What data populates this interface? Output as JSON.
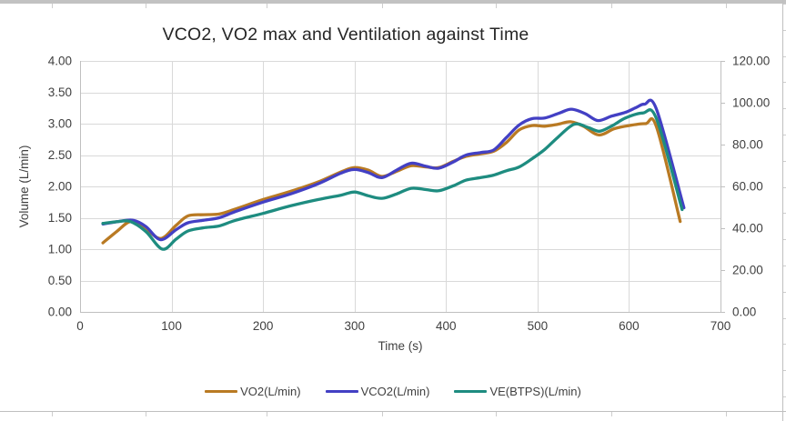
{
  "chart_data": {
    "type": "line",
    "title": "VCO2, VO2 max and Ventilation against Time",
    "xlabel": "Time (s)",
    "ylabel_left": "Volume (L/min)",
    "x_axis": {
      "min": 0,
      "max": 700,
      "tick_step": 100,
      "tick_labels": [
        "0",
        "100",
        "200",
        "300",
        "400",
        "500",
        "600",
        "700"
      ]
    },
    "y_axis_left": {
      "min": 0,
      "max": 4,
      "tick_step": 0.5,
      "tick_labels": [
        "0.00",
        "0.50",
        "1.00",
        "1.50",
        "2.00",
        "2.50",
        "3.00",
        "3.50",
        "4.00"
      ]
    },
    "y_axis_right": {
      "min": 0,
      "max": 120,
      "tick_step": 20,
      "tick_labels": [
        "0.00",
        "20.00",
        "40.00",
        "60.00",
        "80.00",
        "100.00",
        "120.00"
      ]
    },
    "grid": true,
    "legend_position": "bottom",
    "colors": {
      "grid": "#d9d9d9",
      "axis": "#bfbfbf",
      "tick_text": "#404040",
      "title_text": "#262626"
    },
    "series": [
      {
        "name": "VO2(L/min)",
        "color": "#b97a23",
        "axis": "left",
        "points": [
          [
            25,
            1.1
          ],
          [
            40,
            1.28
          ],
          [
            55,
            1.44
          ],
          [
            70,
            1.35
          ],
          [
            88,
            1.17
          ],
          [
            105,
            1.38
          ],
          [
            118,
            1.53
          ],
          [
            135,
            1.55
          ],
          [
            152,
            1.56
          ],
          [
            170,
            1.64
          ],
          [
            200,
            1.79
          ],
          [
            230,
            1.92
          ],
          [
            260,
            2.07
          ],
          [
            285,
            2.23
          ],
          [
            300,
            2.3
          ],
          [
            315,
            2.26
          ],
          [
            330,
            2.16
          ],
          [
            346,
            2.24
          ],
          [
            362,
            2.33
          ],
          [
            378,
            2.31
          ],
          [
            392,
            2.3
          ],
          [
            408,
            2.4
          ],
          [
            422,
            2.48
          ],
          [
            438,
            2.52
          ],
          [
            452,
            2.56
          ],
          [
            466,
            2.7
          ],
          [
            480,
            2.9
          ],
          [
            494,
            2.97
          ],
          [
            508,
            2.96
          ],
          [
            522,
            2.99
          ],
          [
            536,
            3.03
          ],
          [
            550,
            2.96
          ],
          [
            567,
            2.82
          ],
          [
            584,
            2.92
          ],
          [
            600,
            2.97
          ],
          [
            618,
            3.0
          ],
          [
            630,
            2.95
          ],
          [
            656,
            1.44
          ]
        ]
      },
      {
        "name": "VCO2(L/min)",
        "color": "#4340c4",
        "axis": "left",
        "points": [
          [
            25,
            1.4
          ],
          [
            42,
            1.44
          ],
          [
            58,
            1.46
          ],
          [
            72,
            1.36
          ],
          [
            88,
            1.15
          ],
          [
            105,
            1.31
          ],
          [
            118,
            1.42
          ],
          [
            135,
            1.46
          ],
          [
            152,
            1.5
          ],
          [
            170,
            1.6
          ],
          [
            200,
            1.75
          ],
          [
            230,
            1.88
          ],
          [
            260,
            2.04
          ],
          [
            285,
            2.21
          ],
          [
            300,
            2.27
          ],
          [
            315,
            2.22
          ],
          [
            330,
            2.14
          ],
          [
            346,
            2.26
          ],
          [
            362,
            2.37
          ],
          [
            378,
            2.32
          ],
          [
            392,
            2.29
          ],
          [
            408,
            2.39
          ],
          [
            422,
            2.5
          ],
          [
            438,
            2.54
          ],
          [
            452,
            2.58
          ],
          [
            466,
            2.78
          ],
          [
            480,
            2.98
          ],
          [
            494,
            3.08
          ],
          [
            508,
            3.09
          ],
          [
            524,
            3.17
          ],
          [
            537,
            3.23
          ],
          [
            552,
            3.16
          ],
          [
            566,
            3.05
          ],
          [
            581,
            3.12
          ],
          [
            596,
            3.18
          ],
          [
            608,
            3.26
          ],
          [
            617,
            3.31
          ],
          [
            630,
            3.23
          ],
          [
            660,
            1.66
          ]
        ]
      },
      {
        "name": "VE(BTPS)(L/min)",
        "color": "#1e8c80",
        "axis": "right",
        "points": [
          [
            25,
            42.3
          ],
          [
            42,
            43.2
          ],
          [
            55,
            43.2
          ],
          [
            72,
            38.4
          ],
          [
            90,
            30.0
          ],
          [
            105,
            34.8
          ],
          [
            118,
            38.7
          ],
          [
            135,
            40.2
          ],
          [
            152,
            41.1
          ],
          [
            170,
            43.8
          ],
          [
            200,
            47.1
          ],
          [
            230,
            50.7
          ],
          [
            260,
            53.7
          ],
          [
            285,
            55.8
          ],
          [
            300,
            57.3
          ],
          [
            315,
            55.5
          ],
          [
            330,
            54.3
          ],
          [
            346,
            56.4
          ],
          [
            362,
            59.1
          ],
          [
            378,
            58.5
          ],
          [
            392,
            57.9
          ],
          [
            408,
            60.3
          ],
          [
            422,
            63.0
          ],
          [
            438,
            64.2
          ],
          [
            452,
            65.4
          ],
          [
            466,
            67.5
          ],
          [
            480,
            69.3
          ],
          [
            494,
            73.2
          ],
          [
            508,
            77.7
          ],
          [
            522,
            83.4
          ],
          [
            540,
            89.7
          ],
          [
            555,
            88.2
          ],
          [
            568,
            86.4
          ],
          [
            582,
            89.1
          ],
          [
            596,
            92.7
          ],
          [
            615,
            95.1
          ],
          [
            630,
            92.4
          ],
          [
            658,
            48.9
          ]
        ]
      }
    ]
  }
}
